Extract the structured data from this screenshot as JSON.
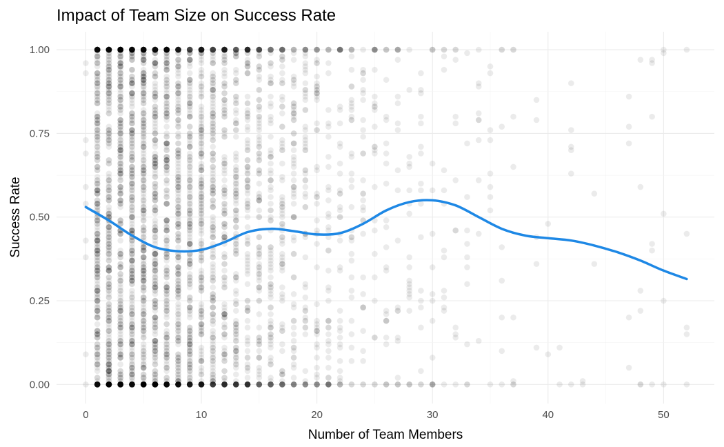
{
  "chart_data": {
    "type": "scatter",
    "title": "Impact of Team Size on Success Rate",
    "xlabel": "Number of Team Members",
    "ylabel": "Success Rate",
    "xlim": [
      -2.6,
      54.6
    ],
    "ylim": [
      -0.05,
      1.05
    ],
    "x_ticks": [
      0,
      10,
      20,
      30,
      40,
      50
    ],
    "x_tick_labels": [
      "0",
      "10",
      "20",
      "30",
      "40",
      "50"
    ],
    "y_ticks": [
      0,
      0.25,
      0.5,
      0.75,
      1
    ],
    "y_tick_labels": [
      "0.00",
      "0.25",
      "0.50",
      "0.75",
      "1.00"
    ],
    "grid": true,
    "point_color": "#000000",
    "point_alpha": 0.08,
    "smooth_color": "#1e88e5",
    "point_density_by_team_size": [
      {
        "x": 0,
        "n": 10
      },
      {
        "x": 1,
        "n": 300
      },
      {
        "x": 2,
        "n": 300
      },
      {
        "x": 3,
        "n": 300
      },
      {
        "x": 4,
        "n": 300
      },
      {
        "x": 5,
        "n": 300
      },
      {
        "x": 6,
        "n": 280
      },
      {
        "x": 7,
        "n": 260
      },
      {
        "x": 8,
        "n": 240
      },
      {
        "x": 9,
        "n": 220
      },
      {
        "x": 10,
        "n": 200
      },
      {
        "x": 11,
        "n": 180
      },
      {
        "x": 12,
        "n": 160
      },
      {
        "x": 13,
        "n": 140
      },
      {
        "x": 14,
        "n": 125
      },
      {
        "x": 15,
        "n": 110
      },
      {
        "x": 16,
        "n": 95
      },
      {
        "x": 17,
        "n": 85
      },
      {
        "x": 18,
        "n": 75
      },
      {
        "x": 19,
        "n": 65
      },
      {
        "x": 20,
        "n": 55
      },
      {
        "x": 21,
        "n": 48
      },
      {
        "x": 22,
        "n": 42
      },
      {
        "x": 23,
        "n": 36
      },
      {
        "x": 24,
        "n": 32
      },
      {
        "x": 25,
        "n": 28
      },
      {
        "x": 26,
        "n": 25
      },
      {
        "x": 27,
        "n": 22
      },
      {
        "x": 28,
        "n": 20
      },
      {
        "x": 29,
        "n": 18
      },
      {
        "x": 30,
        "n": 16
      },
      {
        "x": 31,
        "n": 14
      },
      {
        "x": 32,
        "n": 12
      },
      {
        "x": 33,
        "n": 11
      },
      {
        "x": 34,
        "n": 10
      },
      {
        "x": 35,
        "n": 9
      },
      {
        "x": 36,
        "n": 8
      },
      {
        "x": 37,
        "n": 8
      },
      {
        "x": 39,
        "n": 5
      },
      {
        "x": 40,
        "n": 2
      },
      {
        "x": 41,
        "n": 2
      },
      {
        "x": 42,
        "n": 6
      },
      {
        "x": 43,
        "n": 2
      },
      {
        "x": 44,
        "n": 2
      },
      {
        "x": 47,
        "n": 5
      },
      {
        "x": 48,
        "n": 6
      },
      {
        "x": 49,
        "n": 6
      },
      {
        "x": 50,
        "n": 5
      },
      {
        "x": 52,
        "n": 5
      }
    ],
    "series": [
      {
        "type": "smooth",
        "x": [
          0,
          2,
          4,
          6,
          8,
          10,
          12,
          14,
          16,
          18,
          20,
          22,
          24,
          26,
          28,
          30,
          32,
          34,
          36,
          38,
          40,
          42,
          44,
          46,
          48,
          50,
          52
        ],
        "y": [
          0.53,
          0.49,
          0.445,
          0.41,
          0.398,
          0.402,
          0.425,
          0.455,
          0.465,
          0.458,
          0.448,
          0.452,
          0.48,
          0.52,
          0.545,
          0.55,
          0.535,
          0.5,
          0.465,
          0.445,
          0.437,
          0.43,
          0.415,
          0.395,
          0.37,
          0.34,
          0.315
        ]
      }
    ]
  }
}
